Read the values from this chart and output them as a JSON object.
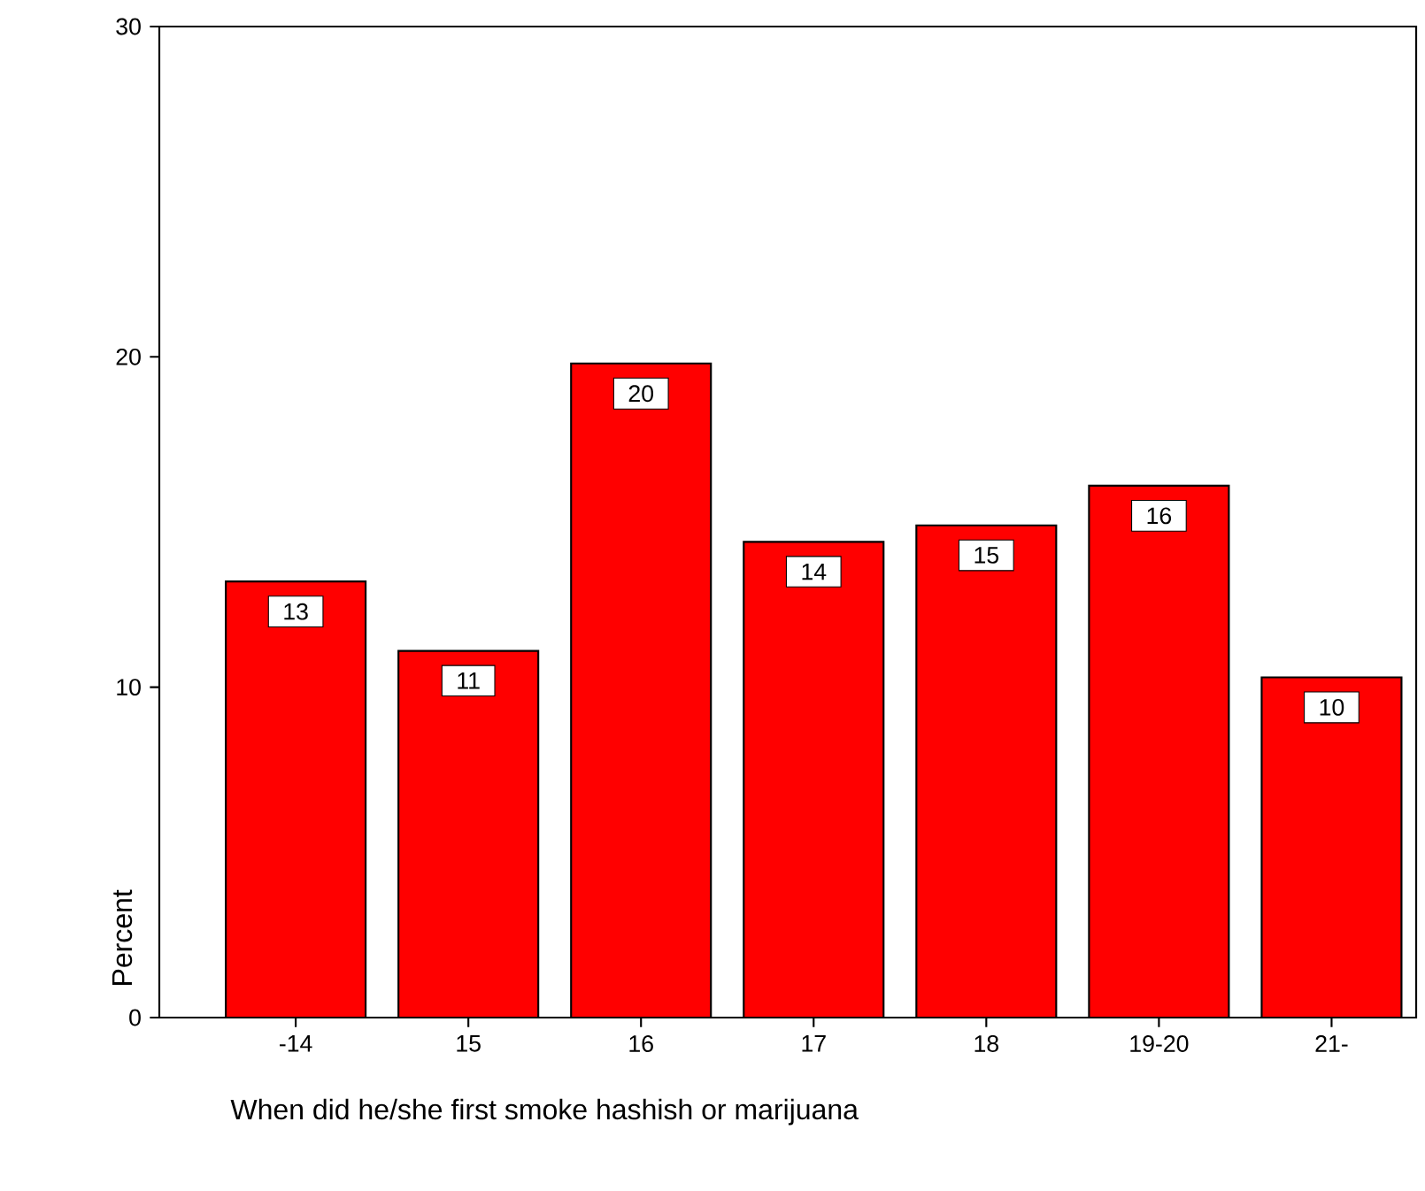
{
  "chart_data": {
    "type": "bar",
    "xlabel": "When did he/she first smoke hashish or marijuana",
    "ylabel": "Percent",
    "categories": [
      "-14",
      "15",
      "16",
      "17",
      "18",
      "19-20",
      "21-"
    ],
    "values": [
      13.2,
      11.1,
      19.8,
      14.4,
      14.9,
      16.1,
      10.3
    ],
    "value_labels": [
      "13",
      "11",
      "20",
      "14",
      "15",
      "16",
      "10"
    ],
    "color": "#ff0000",
    "ylim": [
      0,
      30
    ],
    "yticks": [
      0,
      10,
      20,
      30
    ]
  }
}
